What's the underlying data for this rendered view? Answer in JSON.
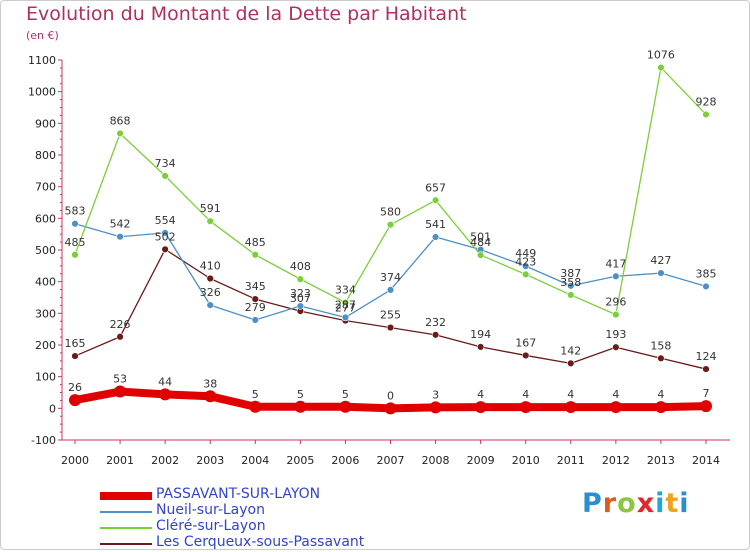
{
  "title": "Evolution du Montant de la Dette par Habitant",
  "unit_label": "(en €)",
  "logo": {
    "letters": [
      "P",
      "r",
      "o",
      "x",
      "i",
      "t",
      "i"
    ],
    "colors": [
      "#2a8fd1",
      "#e05a1a",
      "#8cc63f",
      "#e3262b",
      "#1aa7e0",
      "#f0a21a",
      "#2a8fd1"
    ]
  },
  "chart_data": {
    "type": "line",
    "title": "Evolution du Montant de la Dette par Habitant",
    "ylabel": "(en €)",
    "xlabel": "",
    "x": [
      "2000",
      "2001",
      "2002",
      "2003",
      "2004",
      "2005",
      "2006",
      "2007",
      "2008",
      "2009",
      "2010",
      "2011",
      "2012",
      "2013",
      "2014"
    ],
    "ylim": [
      -100,
      1100
    ],
    "yticks": [
      "-100",
      "0",
      "100",
      "200",
      "300",
      "400",
      "500",
      "600",
      "700",
      "800",
      "900",
      "1000",
      "1100"
    ],
    "grid": false,
    "legend_position": "bottom-left",
    "series": [
      {
        "name": "PASSAVANT-SUR-LAYON",
        "color": "#e00000",
        "values": [
          26,
          53,
          44,
          38,
          5,
          5,
          5,
          0,
          3,
          4,
          4,
          4,
          4,
          4,
          7
        ]
      },
      {
        "name": "Nueil-sur-Layon",
        "color": "#4d90c6",
        "values": [
          583,
          542,
          554,
          326,
          279,
          323,
          287,
          374,
          541,
          501,
          449,
          387,
          417,
          427,
          385
        ]
      },
      {
        "name": "Cléré-sur-Layon",
        "color": "#7ccf3a",
        "values": [
          485,
          868,
          734,
          591,
          485,
          408,
          334,
          580,
          657,
          484,
          423,
          358,
          296,
          1076,
          928
        ]
      },
      {
        "name": "Les Cerqueux-sous-Passavant",
        "color": "#6b1a1a",
        "values": [
          165,
          226,
          502,
          410,
          345,
          307,
          277,
          255,
          232,
          194,
          167,
          142,
          193,
          158,
          124
        ]
      }
    ]
  }
}
